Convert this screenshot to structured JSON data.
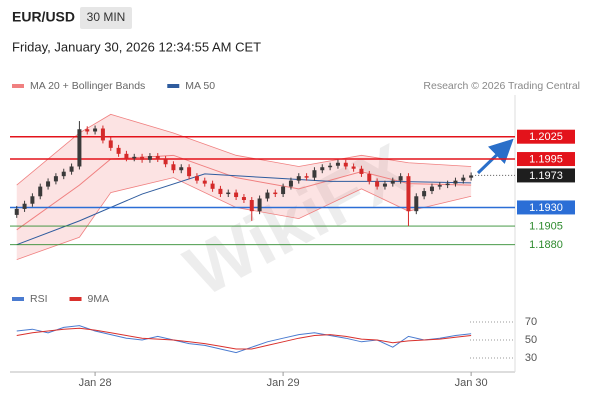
{
  "header": {
    "symbol": "EUR/USD",
    "interval": "30 MIN",
    "datetime": "Friday, January 30, 2026 12:34:55 AM CET"
  },
  "watermark": "WikiFX",
  "chart_data": [
    {
      "type": "candlestick",
      "copyright": "Research © 2026 Trading Central",
      "up_color": "#3a3a3a",
      "down_color": "#d42a2a",
      "x": [
        0,
        1,
        2,
        3,
        4,
        5,
        6,
        7,
        8,
        9,
        10,
        11,
        12,
        13,
        14,
        15,
        16,
        17,
        18,
        19,
        20,
        21,
        22,
        23,
        24,
        25,
        26,
        27,
        28,
        29,
        30,
        31,
        32,
        33,
        34,
        35,
        36,
        37,
        38,
        39,
        40,
        41,
        42,
        43,
        44,
        45,
        46,
        47,
        48,
        49,
        50,
        51,
        52,
        53,
        54,
        55,
        56,
        57,
        58
      ],
      "open": [
        1.192,
        1.1928,
        1.1935,
        1.1945,
        1.1958,
        1.1965,
        1.1972,
        1.1978,
        1.1985,
        1.2035,
        1.2032,
        1.2036,
        1.202,
        1.201,
        1.2002,
        1.1996,
        1.1998,
        1.1994,
        1.1999,
        1.1995,
        1.1988,
        1.198,
        1.1984,
        1.1972,
        1.1966,
        1.1962,
        1.1955,
        1.1948,
        1.195,
        1.1944,
        1.194,
        1.1925,
        1.1942,
        1.195,
        1.1948,
        1.1958,
        1.1966,
        1.1972,
        1.197,
        1.198,
        1.1984,
        1.1986,
        1.199,
        1.1985,
        1.1982,
        1.1975,
        1.1965,
        1.1958,
        1.1962,
        1.1966,
        1.1972,
        1.1925,
        1.1945,
        1.1952,
        1.1958,
        1.196,
        1.1962,
        1.1966,
        1.197
      ],
      "high": [
        1.1932,
        1.1939,
        1.1949,
        1.1962,
        1.1969,
        1.1976,
        1.1982,
        1.1989,
        1.2046,
        1.2039,
        1.204,
        1.204,
        1.2024,
        1.2014,
        1.2006,
        1.2002,
        1.2002,
        1.2003,
        1.2003,
        1.1999,
        1.1992,
        1.1988,
        1.1988,
        1.1976,
        1.197,
        1.1966,
        1.1959,
        1.1954,
        1.1954,
        1.1948,
        1.1944,
        1.1946,
        1.1954,
        1.1954,
        1.1962,
        1.197,
        1.1976,
        1.1976,
        1.1984,
        1.1988,
        1.199,
        1.1994,
        1.1994,
        1.1989,
        1.1986,
        1.1979,
        1.1969,
        1.1966,
        1.197,
        1.1976,
        1.1976,
        1.1949,
        1.1956,
        1.1962,
        1.1964,
        1.1966,
        1.197,
        1.1974,
        1.1977
      ],
      "low": [
        1.1916,
        1.1924,
        1.1931,
        1.1941,
        1.1954,
        1.1961,
        1.1968,
        1.1974,
        1.1981,
        1.2028,
        1.2028,
        1.2016,
        1.2006,
        1.1998,
        1.1992,
        1.1992,
        1.199,
        1.199,
        1.1991,
        1.1984,
        1.1976,
        1.1976,
        1.1968,
        1.1962,
        1.1958,
        1.1951,
        1.1944,
        1.1944,
        1.194,
        1.1936,
        1.1912,
        1.1921,
        1.1938,
        1.1944,
        1.1944,
        1.1954,
        1.1962,
        1.1966,
        1.1966,
        1.1976,
        1.198,
        1.1982,
        1.1981,
        1.1978,
        1.1971,
        1.1961,
        1.1954,
        1.1954,
        1.1958,
        1.1962,
        1.1905,
        1.1921,
        1.1941,
        1.1948,
        1.1954,
        1.1956,
        1.1958,
        1.1962,
        1.1966
      ],
      "close": [
        1.1928,
        1.1935,
        1.1945,
        1.1958,
        1.1965,
        1.1972,
        1.1978,
        1.1985,
        1.2035,
        1.2032,
        1.2036,
        1.202,
        1.201,
        1.2002,
        1.1996,
        1.1998,
        1.1994,
        1.1999,
        1.1995,
        1.1988,
        1.198,
        1.1984,
        1.1972,
        1.1966,
        1.1962,
        1.1955,
        1.1948,
        1.195,
        1.1944,
        1.194,
        1.1925,
        1.1942,
        1.195,
        1.1948,
        1.1958,
        1.1966,
        1.1972,
        1.197,
        1.198,
        1.1984,
        1.1986,
        1.199,
        1.1985,
        1.1982,
        1.1975,
        1.1965,
        1.1958,
        1.1962,
        1.1966,
        1.1972,
        1.1925,
        1.1945,
        1.1952,
        1.1958,
        1.196,
        1.1962,
        1.1966,
        1.197,
        1.1973
      ],
      "series": [
        {
          "name": "MA 20 + Bollinger Bands",
          "color": "#f08080",
          "x": [
            0,
            8,
            12,
            20,
            28,
            36,
            44,
            50,
            58
          ],
          "values": [
            1.19,
            1.196,
            1.1995,
            1.2,
            1.197,
            1.1955,
            1.1978,
            1.1962,
            1.196
          ],
          "upper": [
            1.196,
            1.203,
            1.2055,
            1.203,
            1.2,
            1.1985,
            1.2,
            1.199,
            1.1985
          ],
          "lower": [
            1.186,
            1.189,
            1.195,
            1.197,
            1.193,
            1.1915,
            1.1955,
            1.1925,
            1.1945
          ]
        },
        {
          "name": "MA 50",
          "color": "#2f5c9e",
          "x": [
            0,
            8,
            16,
            24,
            32,
            40,
            48,
            58
          ],
          "values": [
            1.188,
            1.1912,
            1.1948,
            1.1975,
            1.197,
            1.1965,
            1.1965,
            1.1963
          ]
        }
      ],
      "levels": [
        {
          "value": 1.2025,
          "label": "1.2025",
          "color": "#e3131b",
          "style": "box"
        },
        {
          "value": 1.1995,
          "label": "1.1995",
          "color": "#e3131b",
          "style": "box"
        },
        {
          "value": 1.1973,
          "label": "1.1973",
          "color": "#1e1e1e",
          "style": "current"
        },
        {
          "value": 1.193,
          "label": "1.1930",
          "color": "#2b6ed6",
          "style": "box"
        },
        {
          "value": 1.1905,
          "label": "1.1905",
          "color": "#2e8b2e",
          "style": "text"
        },
        {
          "value": 1.188,
          "label": "1.1880",
          "color": "#2e8b2e",
          "style": "text"
        }
      ],
      "xlim": [
        -0.86,
        63.6
      ],
      "ylim": [
        1.1846,
        1.2081
      ],
      "xticks": [
        {
          "value": 10,
          "label": "Jan 28"
        },
        {
          "value": 34,
          "label": "Jan 29"
        },
        {
          "value": 58,
          "label": "Jan 30"
        }
      ]
    },
    {
      "type": "line",
      "x": [
        0,
        2,
        4,
        6,
        8,
        10,
        12,
        14,
        16,
        18,
        20,
        22,
        24,
        26,
        28,
        30,
        32,
        34,
        36,
        38,
        40,
        42,
        44,
        46,
        48,
        50,
        52,
        54,
        56,
        58
      ],
      "series": [
        {
          "name": "RSI",
          "color": "#4a7bd0",
          "values": [
            60,
            62,
            58,
            64,
            66,
            60,
            56,
            52,
            50,
            54,
            50,
            46,
            44,
            40,
            36,
            42,
            48,
            52,
            56,
            58,
            55,
            52,
            48,
            50,
            42,
            54,
            50,
            52,
            55,
            57
          ]
        },
        {
          "name": "9MA",
          "color": "#d9302c",
          "values": [
            55,
            58,
            60,
            62,
            63,
            61,
            58,
            55,
            52,
            51,
            50,
            48,
            46,
            43,
            40,
            40,
            44,
            48,
            52,
            55,
            56,
            54,
            51,
            50,
            47,
            49,
            50,
            51,
            53,
            55
          ]
        }
      ],
      "xlim": [
        -0.86,
        63.6
      ],
      "ylim": [
        18,
        84
      ],
      "yticks": [
        30,
        50,
        70
      ]
    }
  ]
}
